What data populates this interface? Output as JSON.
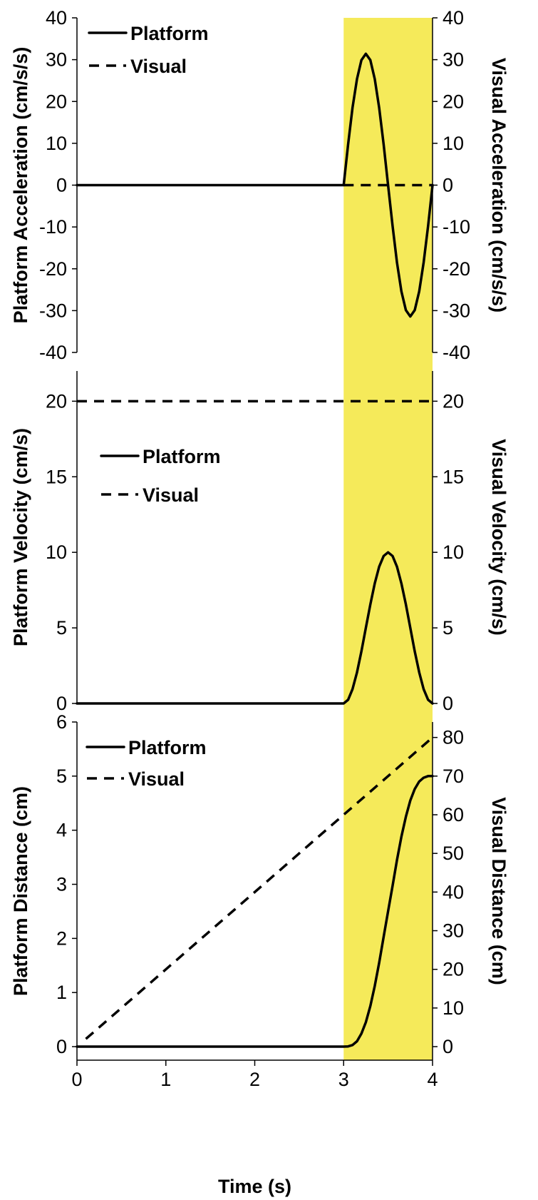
{
  "figure": {
    "highlight_color": "#f5ea5a",
    "highlight_x_range": [
      3,
      4
    ],
    "xlabel": "Time (s)",
    "x_ticks": [
      "0",
      "1",
      "2",
      "3",
      "4"
    ]
  },
  "chart_data": [
    {
      "type": "line",
      "panel": "acceleration",
      "ylabel": "Platform Acceleration (cm/s/s)",
      "ylabel_right": "Visual Acceleration (cm/s/s)",
      "xlim": [
        0,
        4
      ],
      "ylim": [
        -40,
        40
      ],
      "ylim_right": [
        -40,
        40
      ],
      "y_ticks": [
        "-40",
        "-30",
        "-20",
        "-10",
        "0",
        "10",
        "20",
        "30",
        "40"
      ],
      "y_ticks_right": [
        "-40",
        "-30",
        "-20",
        "-10",
        "0",
        "10",
        "20",
        "30",
        "40"
      ],
      "legend_position": "top-left",
      "series": [
        {
          "name": "Platform",
          "style": "solid",
          "axis": "left",
          "x": [
            0,
            3,
            3.05,
            3.1,
            3.15,
            3.2,
            3.25,
            3.3,
            3.35,
            3.4,
            3.45,
            3.5,
            3.55,
            3.6,
            3.65,
            3.7,
            3.75,
            3.8,
            3.85,
            3.9,
            3.95,
            4
          ],
          "y": [
            0,
            0,
            9.7,
            18.5,
            25.4,
            29.9,
            31.4,
            29.9,
            25.4,
            18.5,
            9.7,
            0,
            -9.7,
            -18.5,
            -25.4,
            -29.9,
            -31.4,
            -29.9,
            -25.4,
            -18.5,
            -9.7,
            0
          ]
        },
        {
          "name": "Visual",
          "style": "dashed",
          "axis": "right",
          "x": [
            3,
            4
          ],
          "y": [
            0,
            0
          ]
        }
      ]
    },
    {
      "type": "line",
      "panel": "velocity",
      "ylabel": "Platform Velocity (cm/s)",
      "ylabel_right": "Visual Velocity (cm/s)",
      "xlim": [
        0,
        4
      ],
      "ylim": [
        0,
        22
      ],
      "ylim_right": [
        0,
        22
      ],
      "y_ticks": [
        "0",
        "5",
        "10",
        "15",
        "20"
      ],
      "y_ticks_right": [
        "0",
        "5",
        "10",
        "15",
        "20"
      ],
      "legend_position": "middle-left",
      "series": [
        {
          "name": "Platform",
          "style": "solid",
          "axis": "left",
          "x": [
            0,
            3,
            3.05,
            3.1,
            3.15,
            3.2,
            3.25,
            3.3,
            3.35,
            3.4,
            3.45,
            3.5,
            3.55,
            3.6,
            3.65,
            3.7,
            3.75,
            3.8,
            3.85,
            3.9,
            3.95,
            4
          ],
          "y": [
            0,
            0,
            0.24,
            0.95,
            2.06,
            3.45,
            5.0,
            6.55,
            7.94,
            9.05,
            9.76,
            10.0,
            9.76,
            9.05,
            7.94,
            6.55,
            5.0,
            3.45,
            2.06,
            0.95,
            0.24,
            0
          ]
        },
        {
          "name": "Visual",
          "style": "dashed",
          "axis": "right",
          "x": [
            0,
            4
          ],
          "y": [
            20,
            20
          ]
        }
      ]
    },
    {
      "type": "line",
      "panel": "distance",
      "ylabel": "Platform Distance (cm)",
      "ylabel_right": "Visual Distance (cm)",
      "xlim": [
        0,
        4
      ],
      "ylim": [
        -0.25,
        6
      ],
      "ylim_right": [
        -3.5,
        84
      ],
      "y_ticks": [
        "0",
        "1",
        "2",
        "3",
        "4",
        "5",
        "6"
      ],
      "y_ticks_right": [
        "0",
        "10",
        "20",
        "30",
        "40",
        "50",
        "60",
        "70",
        "80"
      ],
      "legend_position": "top-left",
      "series": [
        {
          "name": "Platform",
          "style": "solid",
          "axis": "left",
          "x": [
            0,
            3,
            3.05,
            3.1,
            3.15,
            3.2,
            3.25,
            3.3,
            3.35,
            3.4,
            3.45,
            3.5,
            3.55,
            3.6,
            3.65,
            3.7,
            3.75,
            3.8,
            3.85,
            3.9,
            3.95,
            4
          ],
          "y": [
            0,
            0,
            0.004,
            0.03,
            0.1,
            0.24,
            0.45,
            0.75,
            1.12,
            1.55,
            2.03,
            2.5,
            2.97,
            3.45,
            3.88,
            4.25,
            4.55,
            4.76,
            4.9,
            4.97,
            5.0,
            5.0
          ]
        },
        {
          "name": "Visual",
          "style": "dashed",
          "axis": "right",
          "x": [
            0.1,
            4
          ],
          "y": [
            2,
            80
          ]
        }
      ]
    }
  ]
}
